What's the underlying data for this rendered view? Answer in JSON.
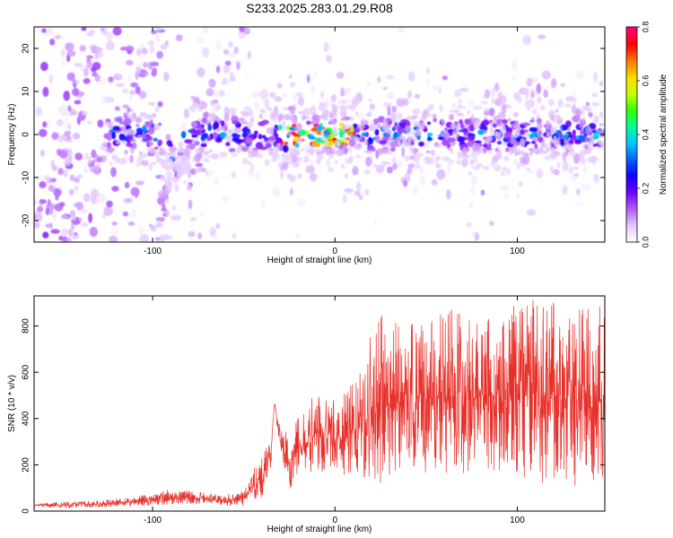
{
  "figure": {
    "title": "S233.2025.283.01.29.R08"
  },
  "colors": {
    "snr_line": "#e8302a",
    "axis": "#000000",
    "colormap": [
      "#ffffff",
      "#e3c8ff",
      "#b05cff",
      "#7000ff",
      "#1400ff",
      "#0060ff",
      "#00c8ff",
      "#00ff9a",
      "#30ff00",
      "#c8ff00",
      "#ffdc00",
      "#ff7800",
      "#ff0000",
      "#ff0078"
    ]
  },
  "chart_data": [
    {
      "type": "heatmap",
      "xlabel": "Height of straight line (km)",
      "ylabel": "Frequency (Hz)",
      "xlim": [
        -165,
        148
      ],
      "ylim": [
        -25,
        25
      ],
      "xticks": [
        -100,
        0,
        100
      ],
      "xtick_labels": [
        "-100",
        "0",
        "100"
      ],
      "yticks": [
        -20,
        -10,
        0,
        10,
        20
      ],
      "ytick_labels": [
        "-20",
        "-10",
        "0",
        "10",
        "20"
      ],
      "grid": false,
      "colorbar": {
        "label": "Normalized spectral amplitude",
        "range": [
          0,
          0.8
        ],
        "ticks": [
          0,
          0.2,
          0.4,
          0.6,
          0.8
        ],
        "tick_labels": [
          "0.0",
          "0.2",
          "0.4",
          "0.6",
          "0.8"
        ]
      },
      "features": {
        "near_zero_band_amplitude": 0.35,
        "peak_amplitude": 0.8,
        "peak_x_range": [
          -30,
          10
        ]
      }
    },
    {
      "type": "line",
      "xlabel": "Height of straight line (km)",
      "ylabel": "SNR (10 * v/v)",
      "xlim": [
        -165,
        148
      ],
      "ylim": [
        0,
        930
      ],
      "xticks": [
        -100,
        0,
        100
      ],
      "xtick_labels": [
        "-100",
        "0",
        "100"
      ],
      "yticks": [
        0,
        200,
        400,
        600,
        800
      ],
      "ytick_labels": [
        "0",
        "200",
        "400",
        "600",
        "800"
      ],
      "grid": false,
      "series": [
        {
          "name": "SNR",
          "x": [
            -165,
            -150,
            -130,
            -110,
            -90,
            -70,
            -60,
            -50,
            -45,
            -40,
            -35,
            -33,
            -30,
            -25,
            -20,
            -15,
            -10,
            -5,
            0,
            5,
            10,
            15,
            20,
            25,
            30,
            40,
            60,
            80,
            100,
            120,
            135,
            148
          ],
          "y": [
            25,
            25,
            30,
            40,
            60,
            55,
            45,
            55,
            110,
            140,
            260,
            470,
            300,
            200,
            280,
            300,
            340,
            300,
            310,
            320,
            350,
            360,
            440,
            450,
            460,
            480,
            490,
            500,
            500,
            490,
            480,
            470
          ],
          "y_max": [
            30,
            40,
            45,
            60,
            95,
            80,
            70,
            90,
            180,
            230,
            330,
            480,
            380,
            320,
            420,
            440,
            540,
            480,
            500,
            520,
            560,
            610,
            780,
            850,
            820,
            800,
            880,
            850,
            900,
            930,
            900,
            880
          ]
        }
      ]
    }
  ]
}
